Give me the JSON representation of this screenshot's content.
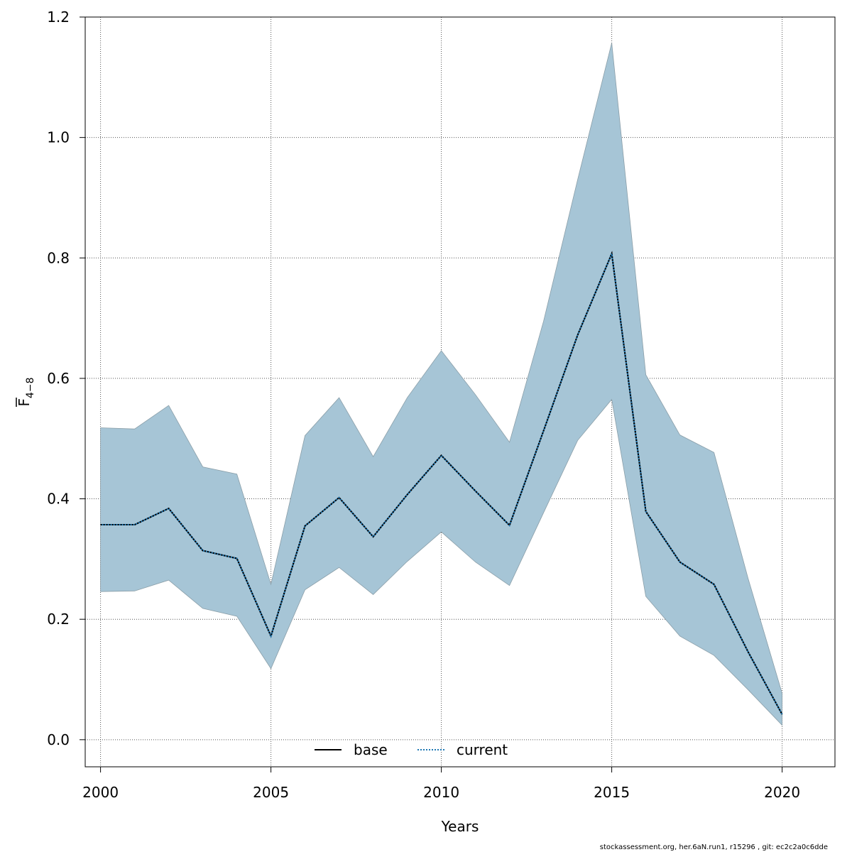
{
  "chart_data": {
    "type": "line",
    "xlabel": "Years",
    "ylabel_main": "F",
    "ylabel_sub": "4−8",
    "xlim": [
      1999.55,
      2021.55
    ],
    "ylim": [
      -0.045,
      1.2
    ],
    "x_ticks": [
      2000,
      2005,
      2010,
      2015,
      2020
    ],
    "x_tick_labels": [
      "2000",
      "2005",
      "2010",
      "2015",
      "2020"
    ],
    "y_ticks": [
      0.0,
      0.2,
      0.4,
      0.6,
      0.8,
      1.0,
      1.2
    ],
    "y_tick_labels": [
      "0.0",
      "0.2",
      "0.4",
      "0.6",
      "0.8",
      "1.0",
      "1.2"
    ],
    "grid": true,
    "legend_position": "bottom-center",
    "x": [
      2000,
      2001,
      2002,
      2003,
      2004,
      2005,
      2006,
      2007,
      2008,
      2009,
      2010,
      2011,
      2012,
      2013,
      2014,
      2015,
      2016,
      2017,
      2018,
      2019,
      2020
    ],
    "series": [
      {
        "name": "base",
        "style": "solid",
        "color": "#000000",
        "values": [
          0.357,
          0.357,
          0.384,
          0.314,
          0.301,
          0.172,
          0.355,
          0.402,
          0.337,
          0.407,
          0.472,
          0.413,
          0.356,
          0.513,
          0.672,
          0.807,
          0.379,
          0.295,
          0.258,
          0.146,
          0.042
        ]
      },
      {
        "name": "current",
        "style": "dotted",
        "color": "#1f78b4",
        "values": [
          0.357,
          0.357,
          0.384,
          0.314,
          0.301,
          0.172,
          0.355,
          0.402,
          0.337,
          0.407,
          0.472,
          0.413,
          0.356,
          0.513,
          0.672,
          0.807,
          0.379,
          0.295,
          0.258,
          0.146,
          0.042
        ]
      }
    ],
    "band": {
      "fill": "#a6c5d6",
      "stroke": "#8a9ea8",
      "lower": [
        0.246,
        0.247,
        0.265,
        0.218,
        0.205,
        0.118,
        0.249,
        0.286,
        0.241,
        0.296,
        0.345,
        0.295,
        0.256,
        0.377,
        0.497,
        0.565,
        0.238,
        0.172,
        0.14,
        0.083,
        0.024
      ],
      "upper": [
        0.518,
        0.516,
        0.555,
        0.453,
        0.441,
        0.258,
        0.505,
        0.568,
        0.47,
        0.568,
        0.646,
        0.573,
        0.494,
        0.695,
        0.93,
        1.157,
        0.606,
        0.506,
        0.477,
        0.268,
        0.077
      ]
    }
  },
  "footer": "stockassessment.org, her.6aN.run1, r15296 , git: ec2c2a0c6dde"
}
